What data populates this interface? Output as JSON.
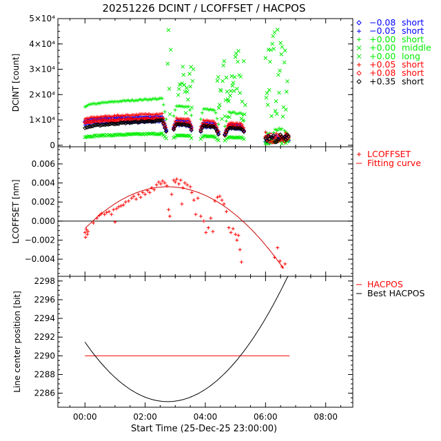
{
  "figure": {
    "title": "20251226  DCINT  /  LCOFFSET  /  HACPOS",
    "xlabel": "Start Time (25-Dec-25 23:00:00)",
    "x_ticks": [
      "00:00",
      "02:00",
      "04:00",
      "06:00",
      "08:00"
    ],
    "x_tick_values": [
      0,
      2,
      4,
      6,
      8
    ],
    "x_range_hours": [
      -0.9,
      8.9
    ]
  },
  "chart_data": [
    {
      "type": "scatter",
      "title": "DCINT",
      "ylabel": "DCINT [count]",
      "ylim": [
        -600,
        50000
      ],
      "y_ticks": [
        {
          "value": 0,
          "label": "0"
        },
        {
          "value": 10000,
          "label": "1×10⁴"
        },
        {
          "value": 20000,
          "label": "2×10⁴"
        },
        {
          "value": 30000,
          "label": "3×10⁴"
        },
        {
          "value": 40000,
          "label": "4×10⁴"
        },
        {
          "value": 50000,
          "label": "5×10⁴"
        }
      ],
      "legend_position": "right",
      "series": [
        {
          "name": "−0.08 short",
          "color": "#0000ff",
          "marker": "diamond",
          "base": 9600,
          "peak": 11200
        },
        {
          "name": "−0.05 short",
          "color": "#0000ff",
          "marker": "plus",
          "base": 8200,
          "peak": 9400
        },
        {
          "name": "+0.00 short",
          "color": "#00ee00",
          "marker": "plus",
          "base": 15200,
          "peak": 18500
        },
        {
          "name": "+0.00 middle",
          "color": "#00ee00",
          "marker": "cross",
          "base": 3200,
          "peak": 4600
        },
        {
          "name": "+0.00 long",
          "color": "#00ee00",
          "marker": "cross",
          "base": 0,
          "peak": 46000
        },
        {
          "name": "+0.05 short",
          "color": "#ff0000",
          "marker": "plus",
          "base": 10200,
          "peak": 12500
        },
        {
          "name": "+0.08 short",
          "color": "#ff0000",
          "marker": "diamond",
          "base": 9000,
          "peak": 10500
        },
        {
          "name": "+0.35 short",
          "color": "#000000",
          "marker": "diamond",
          "base": 6600,
          "peak": 9800
        }
      ]
    },
    {
      "type": "scatter",
      "title": "LCOFFSET",
      "ylabel": "LCOFFSET [nm]",
      "ylim": [
        -0.0058,
        0.0078
      ],
      "y_ticks": [
        {
          "value": -0.004,
          "label": "−0.004"
        },
        {
          "value": -0.002,
          "label": "−0.002"
        },
        {
          "value": 0,
          "label": "0.000"
        },
        {
          "value": 0.002,
          "label": "0.002"
        },
        {
          "value": 0.004,
          "label": "0.004"
        },
        {
          "value": 0.006,
          "label": "0.006"
        }
      ],
      "legend": [
        {
          "label": "LCOFFSET",
          "color": "#ff0000",
          "marker": "plus"
        },
        {
          "label": "Fitting curve",
          "color": "#ff0000",
          "marker": "line"
        }
      ],
      "fit_curve": {
        "vertex_hour": 2.75,
        "peak_value": 0.0036,
        "curvature": -0.00058,
        "x_range": [
          0,
          6.6
        ]
      },
      "points": [
        [
          0.0,
          -0.0012
        ],
        [
          0.02,
          -0.0017
        ],
        [
          0.05,
          -0.0009
        ],
        [
          0.08,
          -0.0014
        ],
        [
          0.1,
          -0.0011
        ],
        [
          0.28,
          -0.0002
        ],
        [
          0.4,
          0.0003
        ],
        [
          0.48,
          0.0006
        ],
        [
          0.55,
          0.0008
        ],
        [
          0.65,
          0.0007
        ],
        [
          0.72,
          0.0009
        ],
        [
          0.8,
          0.001
        ],
        [
          0.88,
          0.0007
        ],
        [
          0.95,
          0.0012
        ],
        [
          1.0,
          -0.0001
        ],
        [
          1.05,
          0.0013
        ],
        [
          1.12,
          0.0015
        ],
        [
          1.2,
          0.0016
        ],
        [
          1.28,
          0.0017
        ],
        [
          1.35,
          0.002
        ],
        [
          1.45,
          0.0021
        ],
        [
          1.55,
          0.0024
        ],
        [
          1.62,
          0.0026
        ],
        [
          1.7,
          0.0023
        ],
        [
          1.78,
          0.0028
        ],
        [
          1.85,
          0.0025
        ],
        [
          1.92,
          0.003
        ],
        [
          2.0,
          0.0028
        ],
        [
          2.08,
          0.0032
        ],
        [
          2.15,
          0.003
        ],
        [
          2.22,
          0.0035
        ],
        [
          2.3,
          0.0033
        ],
        [
          2.38,
          0.0038
        ],
        [
          2.45,
          0.0041
        ],
        [
          2.52,
          0.0039
        ],
        [
          2.58,
          0.0042
        ],
        [
          2.65,
          0.004
        ],
        [
          2.72,
          0.0037
        ],
        [
          2.78,
          0.0012
        ],
        [
          2.82,
          0.0005
        ],
        [
          2.88,
          0.0028
        ],
        [
          2.95,
          0.0043
        ],
        [
          3.0,
          0.0041
        ],
        [
          3.05,
          0.0044
        ],
        [
          3.12,
          0.0039
        ],
        [
          3.18,
          0.0043
        ],
        [
          3.22,
          0.0018
        ],
        [
          3.25,
          0.0035
        ],
        [
          3.32,
          0.004
        ],
        [
          3.4,
          0.0038
        ],
        [
          3.5,
          0.0036
        ],
        [
          3.55,
          0.003
        ],
        [
          3.62,
          0.0022
        ],
        [
          3.68,
          0.0007
        ],
        [
          3.75,
          0.0024
        ],
        [
          3.85,
          0.0005
        ],
        [
          3.95,
          0.0
        ],
        [
          4.02,
          -0.0012
        ],
        [
          4.1,
          -0.0007
        ],
        [
          4.18,
          0.0003
        ],
        [
          4.25,
          -0.0011
        ],
        [
          4.32,
          0.0021
        ],
        [
          4.4,
          0.0025
        ],
        [
          4.48,
          0.0026
        ],
        [
          4.55,
          0.0022
        ],
        [
          4.62,
          0.0018
        ],
        [
          4.7,
          0.001
        ],
        [
          4.78,
          -0.0007
        ],
        [
          4.85,
          -0.0012
        ],
        [
          4.92,
          -0.0008
        ],
        [
          5.0,
          -0.0014
        ],
        [
          5.05,
          -0.002
        ],
        [
          5.1,
          -0.0015
        ],
        [
          5.15,
          -0.003
        ],
        [
          5.2,
          -0.0043
        ],
        [
          6.3,
          -0.0038
        ],
        [
          6.4,
          -0.0028
        ],
        [
          6.48,
          -0.0042
        ],
        [
          6.55,
          -0.0048
        ],
        [
          6.65,
          -0.0045
        ]
      ]
    },
    {
      "type": "line",
      "title": "HACPOS",
      "ylabel": "Line center position [bit]",
      "ylim": [
        2284.5,
        2298.5
      ],
      "y_ticks": [
        {
          "value": 2286,
          "label": "2286"
        },
        {
          "value": 2288,
          "label": "2288"
        },
        {
          "value": 2290,
          "label": "2290"
        },
        {
          "value": 2292,
          "label": "2292"
        },
        {
          "value": 2294,
          "label": "2294"
        },
        {
          "value": 2296,
          "label": "2296"
        },
        {
          "value": 2298,
          "label": "2298"
        }
      ],
      "legend": [
        {
          "label": "HACPOS",
          "color": "#ff0000",
          "marker": "line"
        },
        {
          "label": "Best HACPOS",
          "color": "#000000",
          "marker": "line"
        }
      ],
      "series": [
        {
          "name": "HACPOS",
          "color": "#ff0000",
          "x_range": [
            0,
            6.8
          ],
          "value": 2290.0
        },
        {
          "name": "Best HACPOS",
          "color": "#000000",
          "x_range": [
            0,
            7.05
          ],
          "vertex_hour": 2.75,
          "vertex_value": 2285.1,
          "curvature": 0.842
        }
      ]
    }
  ]
}
